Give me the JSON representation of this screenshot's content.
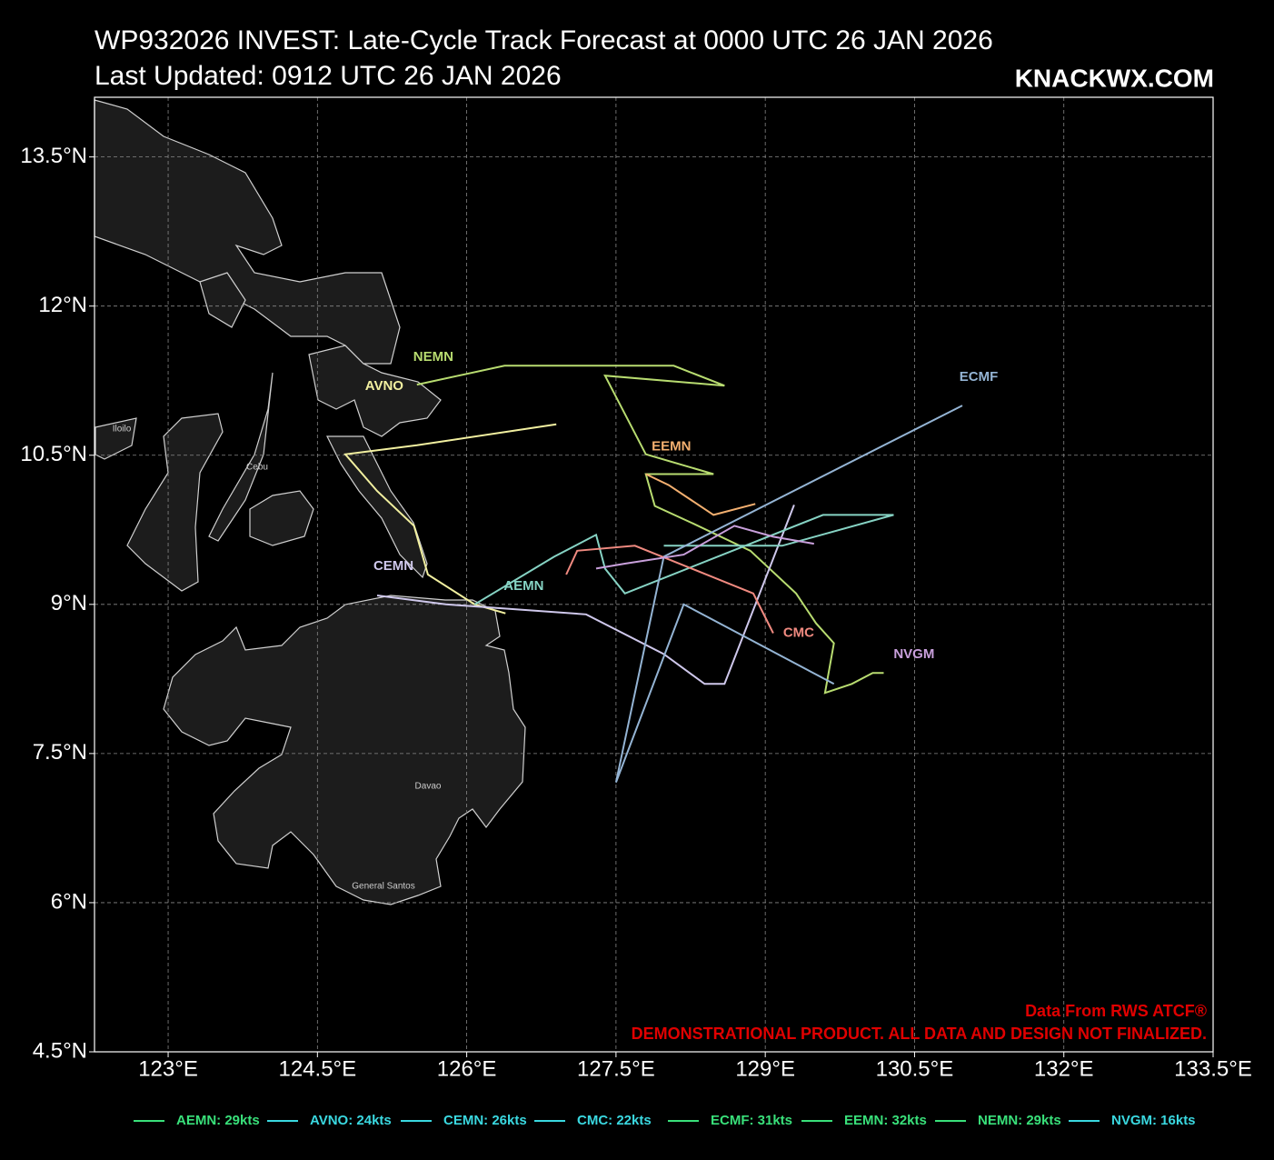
{
  "chart_data": {
    "type": "track-map",
    "title": "WP932026 INVEST: Late-Cycle Track Forecast at 0000 UTC 26 JAN 2026",
    "subtitle": "Last Updated: 0912 UTC 26 JAN 2026",
    "brand": "KNACKWX.COM",
    "source": "Data From RWS ATCF®",
    "disclaimer": "DEMONSTRATIONAL PRODUCT. ALL DATA AND DESIGN NOT FINALIZED.",
    "xlim": [
      122.26,
      133.5
    ],
    "ylim": [
      4.5,
      14.1
    ],
    "xticks": [
      {
        "value": 123,
        "label": "123°E"
      },
      {
        "value": 124.5,
        "label": "124.5°E"
      },
      {
        "value": 126,
        "label": "126°E"
      },
      {
        "value": 127.5,
        "label": "127.5°E"
      },
      {
        "value": 129,
        "label": "129°E"
      },
      {
        "value": 130.5,
        "label": "130.5°E"
      },
      {
        "value": 132,
        "label": "132°E"
      },
      {
        "value": 133.5,
        "label": "133.5°E"
      }
    ],
    "yticks": [
      {
        "value": 4.5,
        "label": "4.5°N"
      },
      {
        "value": 6,
        "label": "6°N"
      },
      {
        "value": 7.5,
        "label": "7.5°N"
      },
      {
        "value": 9,
        "label": "9°N"
      },
      {
        "value": 10.5,
        "label": "10.5°N"
      },
      {
        "value": 12,
        "label": "12°N"
      },
      {
        "value": 13.5,
        "label": "13.5°N"
      }
    ],
    "grid": true,
    "places": [
      "Iloilo",
      "Cebu",
      "Davao",
      "General Santos"
    ],
    "series": [
      {
        "name": "NEMN",
        "color": "#b8dc70",
        "x": [
          125.5,
          126.38,
          128.08,
          128.59,
          127.39,
          127.8,
          128.48,
          127.8,
          127.89,
          128.26,
          128.85,
          129.31,
          129.51,
          129.69,
          129.6,
          129.87,
          130.08,
          130.19
        ],
        "values": [
          11.21,
          11.4,
          11.4,
          11.2,
          11.3,
          10.51,
          10.31,
          10.31,
          9.99,
          9.82,
          9.54,
          9.11,
          8.81,
          8.61,
          8.11,
          8.2,
          8.31,
          8.31
        ]
      },
      {
        "name": "AVNO",
        "color": "#f2f0a0",
        "x": [
          126.9,
          125.5,
          124.78,
          125.1,
          125.47,
          125.61,
          126.08,
          126.39
        ],
        "values": [
          10.81,
          10.6,
          10.51,
          10.14,
          9.79,
          9.3,
          9.0,
          8.91
        ]
      },
      {
        "name": "CEMN",
        "color": "#cfc8ec",
        "x": [
          125.1,
          125.79,
          127.2,
          127.98,
          128.39,
          128.59,
          129.29
        ],
        "values": [
          9.09,
          9.0,
          8.9,
          8.5,
          8.2,
          8.2,
          10.0
        ]
      },
      {
        "name": "AEMN",
        "color": "#86d3c4",
        "x": [
          126.08,
          126.88,
          127.3,
          127.39,
          127.59,
          129.58,
          130.29,
          129.17,
          127.98
        ],
        "values": [
          9.0,
          9.48,
          9.7,
          9.36,
          9.11,
          9.9,
          9.9,
          9.59,
          9.59
        ]
      },
      {
        "name": "ECMF",
        "color": "#94b4d4",
        "x": [
          130.98,
          127.98,
          127.5,
          128.18,
          129.69
        ],
        "values": [
          11.0,
          9.48,
          7.21,
          9.0,
          8.2
        ]
      },
      {
        "name": "EEMN",
        "color": "#f4b070",
        "x": [
          127.8,
          128.03,
          128.48,
          128.9
        ],
        "values": [
          10.31,
          10.2,
          9.9,
          10.01
        ]
      },
      {
        "name": "CMC",
        "color": "#f08a80",
        "x": [
          127.0,
          127.11,
          127.69,
          128.26,
          128.88,
          129.08
        ],
        "values": [
          9.3,
          9.54,
          9.59,
          9.36,
          9.11,
          8.71
        ]
      },
      {
        "name": "NVGM",
        "color": "#c9a0dc",
        "x": [
          129.49,
          129.08,
          128.69,
          128.18,
          127.59,
          127.3
        ],
        "values": [
          9.61,
          9.68,
          9.79,
          9.5,
          9.41,
          9.36
        ]
      }
    ],
    "legend": [
      {
        "label": "AEMN: 29kts",
        "color": "#39e07a"
      },
      {
        "label": "AVNO: 24kts",
        "color": "#3ad8e0"
      },
      {
        "label": "CEMN: 26kts",
        "color": "#3ad8e0"
      },
      {
        "label": "CMC: 22kts",
        "color": "#3ad8e0"
      },
      {
        "label": "ECMF: 31kts",
        "color": "#39e07a"
      },
      {
        "label": "EEMN: 32kts",
        "color": "#39e07a"
      },
      {
        "label": "NEMN: 29kts",
        "color": "#39e07a"
      },
      {
        "label": "NVGM: 16kts",
        "color": "#3ad8e0"
      }
    ]
  }
}
